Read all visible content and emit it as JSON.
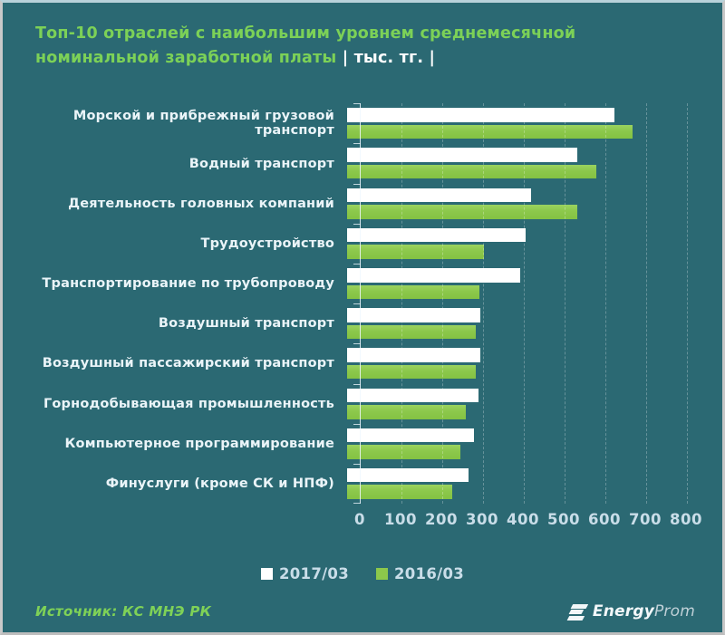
{
  "title": {
    "line1": "Топ-10 отраслей с наибольшим  уровнем среднемесячной",
    "line2_green": "номинальной  заработной платы ",
    "line2_white": "| тыс. тг. |"
  },
  "chart_data": {
    "type": "bar",
    "orientation": "horizontal",
    "title": "Топ-10 отраслей с наибольшим уровнем среднемесячной номинальной заработной платы, тыс. тг.",
    "categories": [
      "Морской и прибрежный грузовой транспорт",
      "Водный транспорт",
      "Деятельность головных компаний",
      "Трудоустройство",
      "Транспортирование по трубопроводу",
      "Воздушный транспорт",
      "Воздушный пассажирский транспорт",
      "Горнодобывающая промышленность",
      "Компьютерное программирование",
      "Финуслуги (кроме СК и НПФ)"
    ],
    "series": [
      {
        "name": "2017/03",
        "color": "#ffffff",
        "values": [
          655,
          565,
          450,
          437,
          425,
          327,
          327,
          322,
          311,
          298
        ]
      },
      {
        "name": "2016/03",
        "color": "#8cc84b",
        "values": [
          700,
          610,
          565,
          335,
          325,
          315,
          315,
          292,
          278,
          257
        ]
      }
    ],
    "xlabel": "тыс. тг.",
    "ylabel": "",
    "xlim": [
      0,
      800
    ],
    "x_ticks": [
      0,
      100,
      200,
      300,
      400,
      500,
      600,
      700,
      800
    ],
    "grid": "vertical-dashed",
    "legend_position": "bottom-center"
  },
  "legend": {
    "items": [
      {
        "label": "2017/03",
        "color": "#ffffff"
      },
      {
        "label": "2016/03",
        "color": "#8cc84b"
      }
    ]
  },
  "footer": {
    "source": "Источник: КС МНЭ РК",
    "logo": {
      "energy": "Energy",
      "prom": "Prom"
    }
  },
  "colors": {
    "background": "#2b6973",
    "title_green": "#7cd157",
    "bar_2017": "#ffffff",
    "bar_2016": "#8cc84b",
    "axis_text": "#c9dde8",
    "label_text": "#eaf4f8",
    "source_green": "#7fd257"
  }
}
